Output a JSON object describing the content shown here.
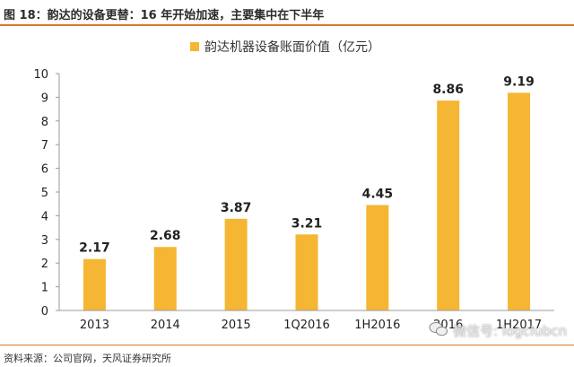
{
  "header": {
    "title": "图 18：韵达的设备更替：16 年开始加速，主要集中在下半年"
  },
  "footer": {
    "source": "资料来源：公司官网，天风证券研究所"
  },
  "watermark": {
    "text": "微信号: logclubcn",
    "icon": "wechat-icon"
  },
  "colors": {
    "bar": "#f5b633",
    "accent": "#d97a2b",
    "axis": "#9a9a9a"
  },
  "chart_data": {
    "type": "bar",
    "title": "",
    "xlabel": "",
    "ylabel": "",
    "categories": [
      "2013",
      "2014",
      "2015",
      "1Q2016",
      "1H2016",
      "2016",
      "1H2017"
    ],
    "series": [
      {
        "name": "韵达机器设备账面价值（亿元）",
        "values": [
          2.17,
          2.68,
          3.87,
          3.21,
          4.45,
          8.86,
          9.19
        ]
      }
    ],
    "ylim": [
      0,
      10
    ],
    "yticks": [
      0,
      1,
      2,
      3,
      4,
      5,
      6,
      7,
      8,
      9,
      10
    ],
    "grid": false,
    "legend": "top-center",
    "data_labels": true
  }
}
